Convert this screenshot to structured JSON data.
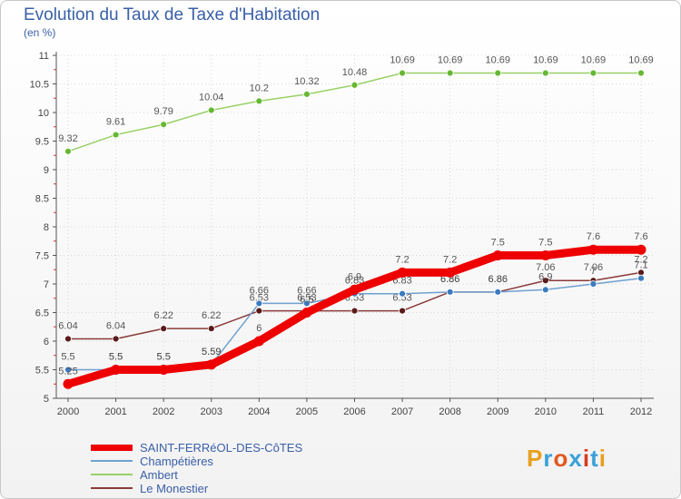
{
  "header": {
    "title": "Evolution du Taux de Taxe d'Habitation",
    "unit": "(en %)"
  },
  "logo": {
    "text": "Proxiti",
    "colors": [
      "#e8a020",
      "#3aa0d8",
      "#e05a20",
      "#3aa0d8",
      "#d83a20",
      "#3aa0d8",
      "#e8a020"
    ]
  },
  "chart_data": {
    "type": "line",
    "title": "Evolution du Taux de Taxe d'Habitation",
    "ylabel": "(en %)",
    "xlabel": "",
    "ylim": [
      5,
      11
    ],
    "yticks": [
      5,
      5.5,
      6,
      6.5,
      7,
      7.5,
      8,
      8.5,
      9,
      9.5,
      10,
      10.5,
      11
    ],
    "ytick_labels": [
      "5",
      "5.5",
      "6",
      "6.5",
      "7",
      "7.5",
      "8",
      "8.5",
      "9",
      "9.5",
      "10",
      "10.5",
      "11"
    ],
    "categories": [
      "2000",
      "2001",
      "2002",
      "2003",
      "2004",
      "2005",
      "2006",
      "2007",
      "2008",
      "2009",
      "2010",
      "2011",
      "2012"
    ],
    "series": [
      {
        "name": "Ambert",
        "color": "#99d066",
        "marker": "#66b833",
        "values": [
          9.32,
          9.61,
          9.79,
          10.04,
          10.2,
          10.32,
          10.48,
          10.69,
          10.69,
          10.69,
          10.69,
          10.69,
          10.69
        ],
        "labels": [
          "9.32",
          "9.61",
          "9.79",
          "10.04",
          "10.2",
          "10.32",
          "10.48",
          "10.69",
          "10.69",
          "10.69",
          "10.69",
          "10.69",
          "10.69"
        ]
      },
      {
        "name": "Le Monestier",
        "color": "#8a3a3a",
        "marker": "#5a1a1a",
        "values": [
          6.04,
          6.04,
          6.22,
          6.22,
          6.53,
          6.53,
          6.53,
          6.53,
          6.86,
          6.86,
          7.06,
          7.06,
          7.2
        ],
        "labels": [
          "6.04",
          "6.04",
          "6.22",
          "6.22",
          "6.53",
          "6.53",
          "6.53",
          "6.53",
          "6.86",
          "6.86",
          "7.06",
          "7.06",
          "7.2"
        ]
      },
      {
        "name": "Champétières",
        "color": "#6fa0d0",
        "marker": "#3a7ac0",
        "values": [
          5.5,
          5.5,
          5.5,
          5.59,
          6.66,
          6.66,
          6.83,
          6.83,
          6.86,
          6.86,
          6.9,
          7.0,
          7.1
        ],
        "labels": [
          "5.5",
          "5.5",
          "5.5",
          "5.59",
          "6.66",
          "6.66",
          "6.83",
          "6.83",
          "6.86",
          "6.86",
          "6.9",
          "7",
          "7.1"
        ]
      },
      {
        "name": "SAINT-FERRéOL-DES-CôTES",
        "color": "#ee0000",
        "marker": "#ee0000",
        "values": [
          5.25,
          5.5,
          5.5,
          5.59,
          6.0,
          6.5,
          6.9,
          7.2,
          7.2,
          7.5,
          7.5,
          7.6,
          7.6
        ],
        "labels": [
          "5.25",
          "5.5",
          "5.5",
          "5.59",
          "6",
          "6.5",
          "6.9",
          "7.2",
          "7.2",
          "7.5",
          "7.5",
          "7.6",
          "7.6"
        ]
      }
    ],
    "legend": [
      "SAINT-FERRéOL-DES-CôTES",
      "Champétières",
      "Ambert",
      "Le Monestier"
    ]
  }
}
